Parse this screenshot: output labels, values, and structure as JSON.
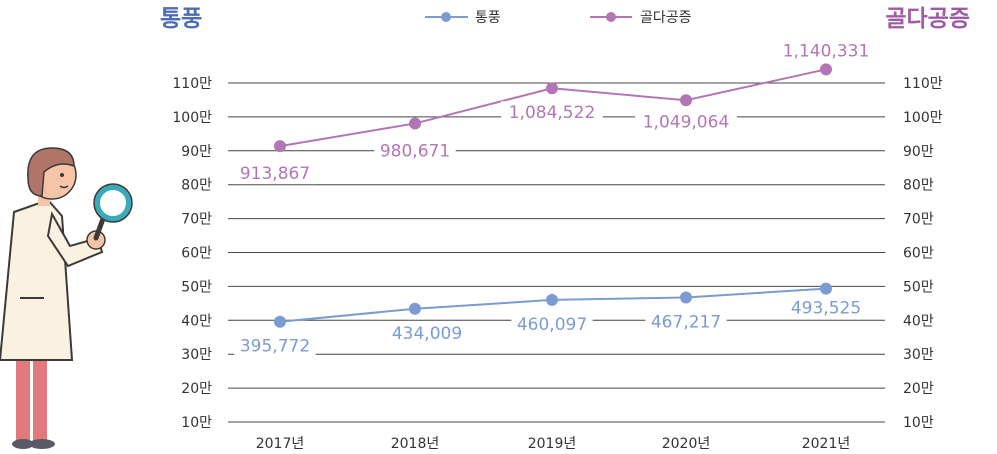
{
  "chart_data": {
    "type": "line",
    "categories": [
      "2017년",
      "2018년",
      "2019년",
      "2020년",
      "2021년"
    ],
    "series": [
      {
        "name": "통풍",
        "values": [
          395772,
          434009,
          460097,
          467217,
          493525
        ],
        "labels": [
          "395,772",
          "434,009",
          "460,097",
          "467,217",
          "493,525"
        ],
        "color": "#7b9bd1"
      },
      {
        "name": "골다공증",
        "values": [
          913867,
          980671,
          1084522,
          1049064,
          1140331
        ],
        "labels": [
          "913,867",
          "980,671",
          "1,084,522",
          "1,049,064",
          "1,140,331"
        ],
        "color": "#b276b4"
      }
    ],
    "left_axis_title": "통풍",
    "right_axis_title": "골다공증",
    "y_ticks": [
      "10만",
      "20만",
      "30만",
      "40만",
      "50만",
      "60만",
      "70만",
      "80만",
      "90만",
      "100만",
      "110만"
    ],
    "ylim": [
      100000,
      1100000
    ],
    "grid": true,
    "legend": "top-center"
  },
  "colors": {
    "tonpung": "#7b9bd1",
    "golda": "#b276b4",
    "title_left": "#4a6db5",
    "title_right": "#a05aa5",
    "grid": "#444444",
    "text": "#333333"
  }
}
